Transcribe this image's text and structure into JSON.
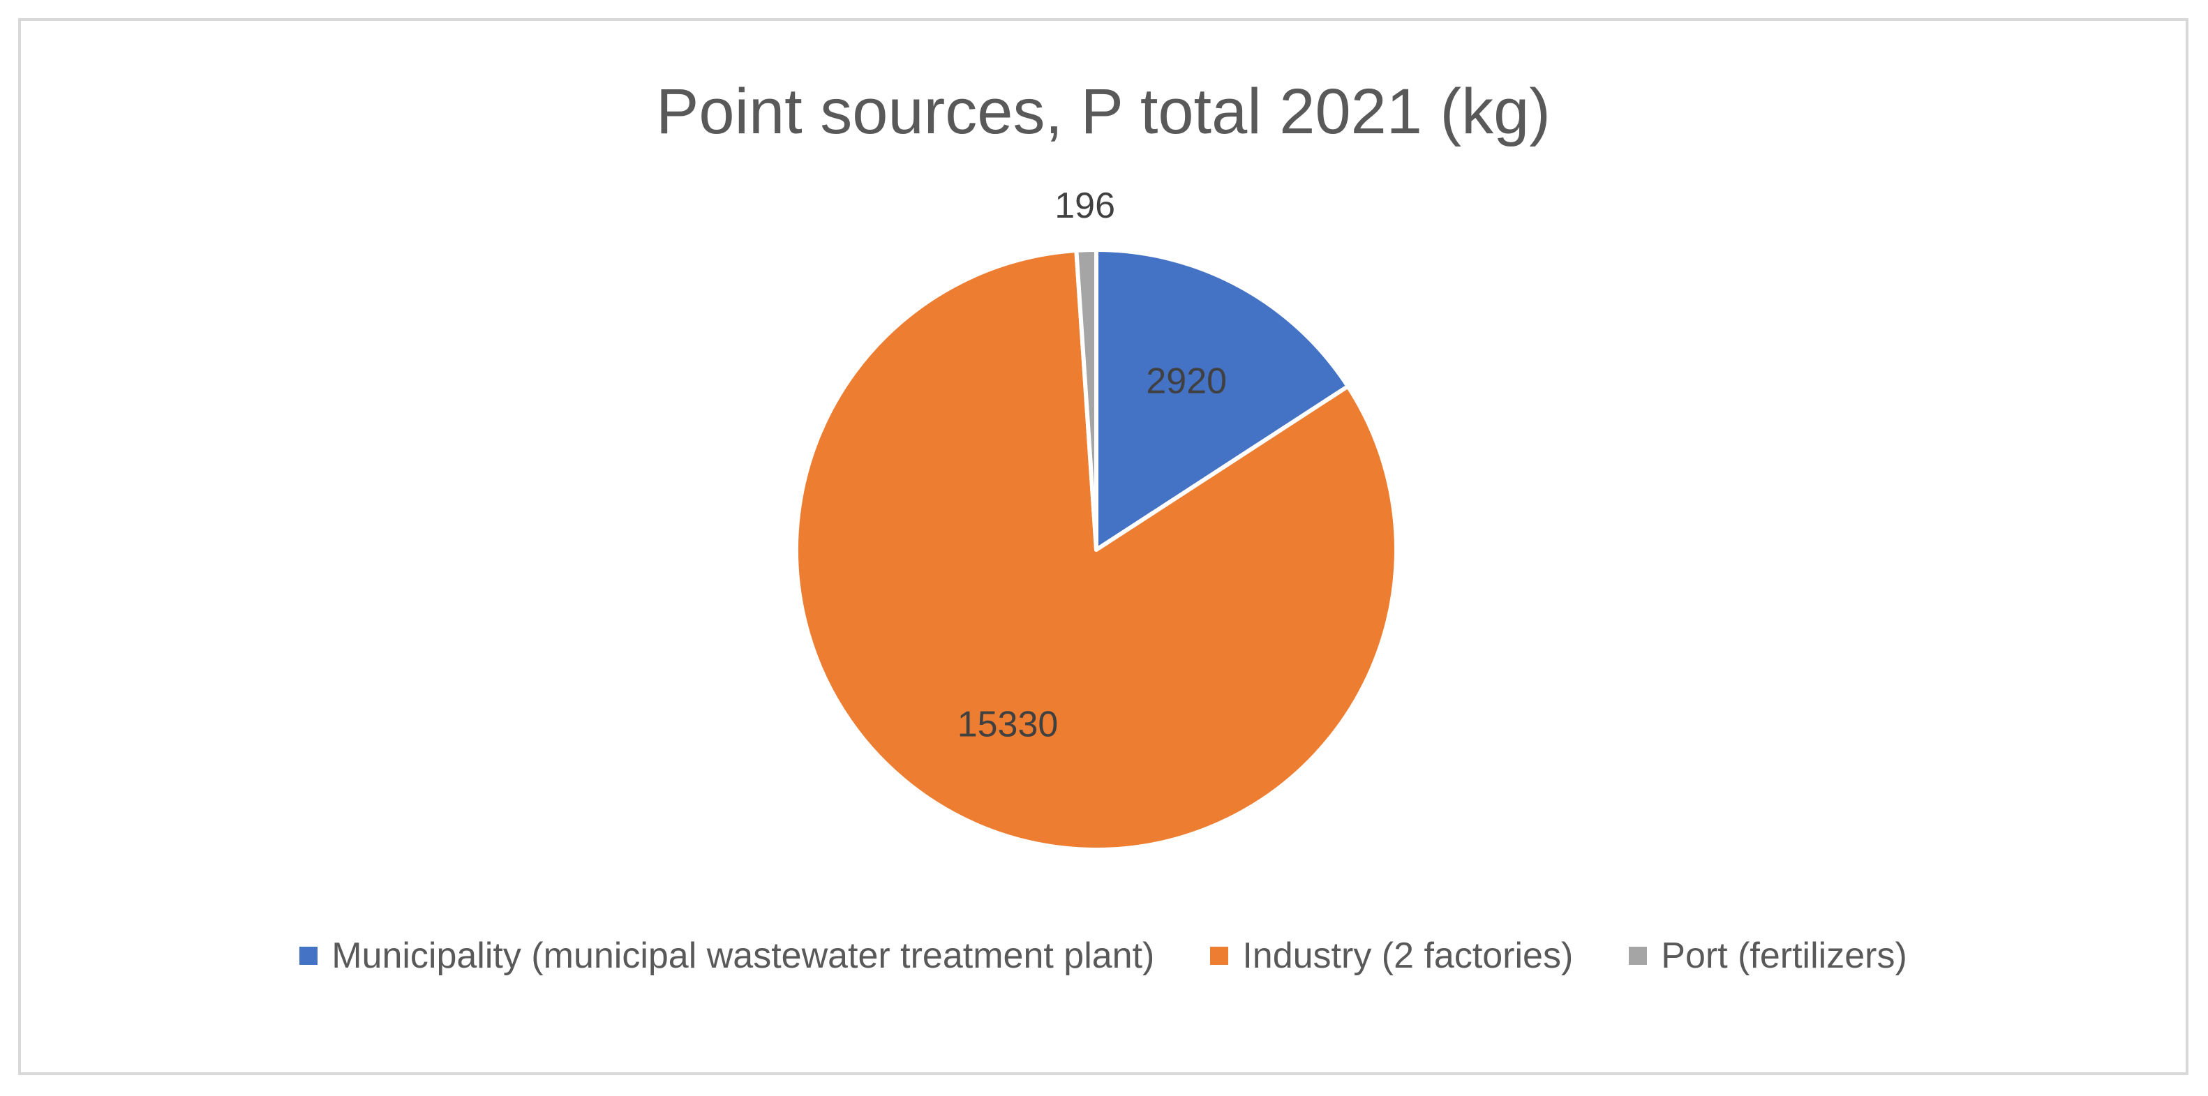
{
  "chart_data": {
    "type": "pie",
    "title": "Point sources, P total 2021 (kg)",
    "categories": [
      "Municipality (municipal wastewater treatment plant)",
      "Industry (2 factories)",
      "Port (fertilizers)"
    ],
    "values": [
      2920,
      15330,
      196
    ],
    "data_labels": [
      "2920",
      "15330",
      "196"
    ],
    "colors": [
      "#4472C4",
      "#ED7D31",
      "#A5A5A5"
    ],
    "legend_position": "bottom",
    "start_angle_deg": 0,
    "direction": "clockwise"
  }
}
